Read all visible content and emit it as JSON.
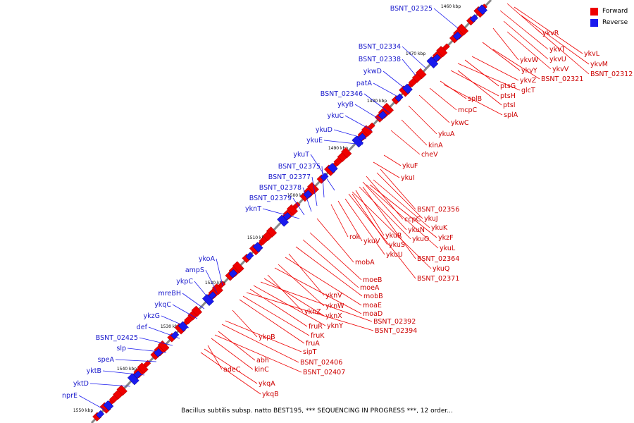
{
  "legend": [
    {
      "label": "Forward",
      "color": "#ee0000"
    },
    {
      "label": "Reverse",
      "color": "#1a1aee"
    }
  ],
  "caption": "Bacillus subtilis subsp. natto BEST195, *** SEQUENCING IN PROGRESS ***, 12 order...",
  "ruler_labels": [
    "1460 kbp",
    "1470 kbp",
    "1480 kbp",
    "1490 kbp",
    "1500 kbp",
    "1510 kbp",
    "1520 kbp",
    "1530 kbp",
    "1540 kbp",
    "1550 kbp"
  ],
  "reverse_genes": [
    "BSNT_02325",
    "BSNT_02334",
    "BSNT_02338",
    "ykwD",
    "patA",
    "BSNT_02346",
    "ykyB",
    "ykuC",
    "ykuD",
    "ykuE",
    "ykuT",
    "BSNT_02375",
    "BSNT_02377",
    "BSNT_02378",
    "BSNT_02379",
    "yknT",
    "ykoA",
    "ampS",
    "ykpC",
    "mreBH",
    "ykqC",
    "ykzG",
    "def",
    "BSNT_02425",
    "slp",
    "speA",
    "yktB",
    "yktD",
    "nprE"
  ],
  "forward_genes": [
    "ykvR",
    "ykvL",
    "ykvT",
    "ykvM",
    "ykvU",
    "BSNT_02312",
    "ykvW",
    "ykvV",
    "ykvY",
    "BSNT_02321",
    "ykvZ",
    "ptsG",
    "glcT",
    "ptsH",
    "splB",
    "mcpC",
    "ptsI",
    "splA",
    "ykwC",
    "ykuA",
    "kinA",
    "cheV",
    "ykuF",
    "ykuI",
    "BSNT_02356",
    "ykuJ",
    "ccpC",
    "ykuK",
    "ykuN",
    "ykzF",
    "ykuO",
    "rok",
    "ykuR",
    "ykuV",
    "ykuS",
    "ykuL",
    "ykuU",
    "BSNT_02364",
    "ykuQ",
    "BSNT_02371",
    "mobA",
    "moeB",
    "moeA",
    "mobB",
    "yknV",
    "moaE",
    "yknW",
    "moaD",
    "yknZ",
    "yknX",
    "BSNT_02392",
    "fruR",
    "yknY",
    "BSNT_02394",
    "fruK",
    "fruA",
    "ykpB",
    "sipT",
    "BSNT_02406",
    "abh",
    "BSNT_02407",
    "kinC",
    "adeC",
    "ykqA",
    "ykqB"
  ]
}
